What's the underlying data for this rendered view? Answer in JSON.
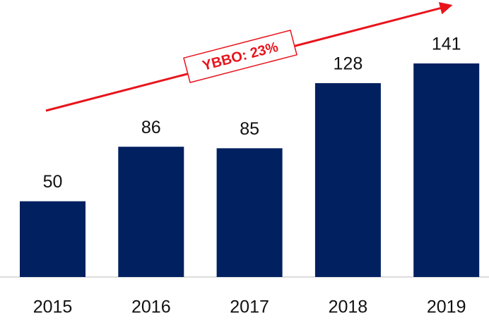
{
  "chart_data": {
    "type": "bar",
    "categories": [
      "2015",
      "2016",
      "2017",
      "2018",
      "2019"
    ],
    "values": [
      50,
      86,
      85,
      128,
      141
    ],
    "color": "#002060",
    "annotation": "YBBO: 23%",
    "annotation_color": "#e8141c"
  }
}
